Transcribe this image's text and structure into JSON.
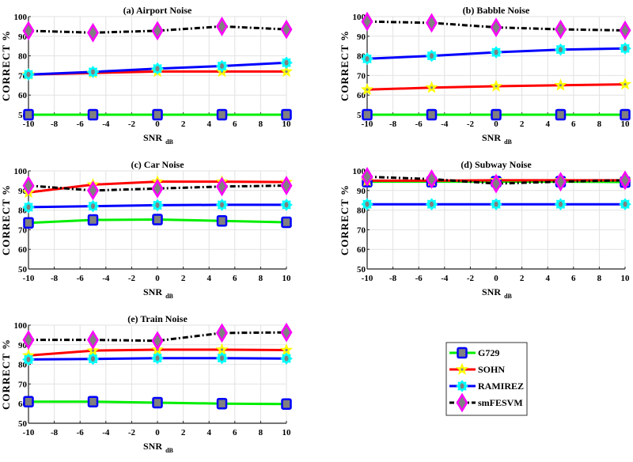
{
  "chart_data": [
    {
      "type": "line",
      "title": "(a) Airport Noise",
      "xlabel": "SNR",
      "xlabel_sub": "dB",
      "ylabel": "CORRECT %",
      "x": [
        -10,
        -5,
        0,
        5,
        10
      ],
      "xlim": [
        -10,
        10
      ],
      "ylim": [
        50,
        100
      ],
      "xticks": [
        -10,
        -8,
        -6,
        -4,
        -2,
        0,
        2,
        4,
        6,
        8,
        10
      ],
      "yticks": [
        50,
        60,
        70,
        80,
        90,
        100
      ],
      "grid": true,
      "series": [
        {
          "name": "G729",
          "values": [
            50,
            50,
            50,
            50,
            50
          ]
        },
        {
          "name": "SOHN",
          "values": [
            70.5,
            71.3,
            72,
            72,
            72
          ]
        },
        {
          "name": "RAMIREZ",
          "values": [
            70.5,
            71.8,
            73.5,
            74.8,
            76.5
          ]
        },
        {
          "name": "smFESVM",
          "values": [
            92.8,
            91.8,
            92.8,
            95,
            93.5
          ]
        }
      ]
    },
    {
      "type": "line",
      "title": "(b) Babble Noise",
      "xlabel": "SNR",
      "xlabel_sub": "dB",
      "ylabel": "CORRECT %",
      "x": [
        -10,
        -5,
        0,
        5,
        10
      ],
      "xlim": [
        -10,
        10
      ],
      "ylim": [
        50,
        100
      ],
      "xticks": [
        -10,
        -8,
        -6,
        -4,
        -2,
        0,
        2,
        4,
        6,
        8,
        10
      ],
      "yticks": [
        50,
        60,
        70,
        80,
        90,
        100
      ],
      "grid": true,
      "series": [
        {
          "name": "G729",
          "values": [
            50,
            50,
            50,
            50,
            50
          ]
        },
        {
          "name": "SOHN",
          "values": [
            62.8,
            63.8,
            64.5,
            65,
            65.5
          ]
        },
        {
          "name": "RAMIREZ",
          "values": [
            78.5,
            80,
            81.8,
            83.2,
            83.8
          ]
        },
        {
          "name": "smFESVM",
          "values": [
            97.5,
            96.8,
            94.5,
            93.5,
            93
          ]
        }
      ]
    },
    {
      "type": "line",
      "title": "(c) Car Noise",
      "xlabel": "SNR",
      "xlabel_sub": "dB",
      "ylabel": "CORRECT %",
      "x": [
        -10,
        -5,
        0,
        5,
        10
      ],
      "xlim": [
        -10,
        10
      ],
      "ylim": [
        50,
        100
      ],
      "xticks": [
        -10,
        -8,
        -6,
        -4,
        -2,
        0,
        2,
        4,
        6,
        8,
        10
      ],
      "yticks": [
        50,
        60,
        70,
        80,
        90,
        100
      ],
      "grid": true,
      "series": [
        {
          "name": "G729",
          "values": [
            73.5,
            75,
            75.2,
            74.5,
            73.8
          ]
        },
        {
          "name": "SOHN",
          "values": [
            89,
            93,
            94.5,
            94.5,
            94.3
          ]
        },
        {
          "name": "RAMIREZ",
          "values": [
            81.5,
            82,
            82.5,
            82.7,
            82.7
          ]
        },
        {
          "name": "smFESVM",
          "values": [
            92.5,
            90,
            91,
            92,
            92.5
          ]
        }
      ]
    },
    {
      "type": "line",
      "title": "(d) Subway Noise",
      "xlabel": "SNR",
      "xlabel_sub": "dB",
      "ylabel": "CORRECT %",
      "x": [
        -10,
        -5,
        0,
        5,
        10
      ],
      "xlim": [
        -10,
        10
      ],
      "ylim": [
        50,
        100
      ],
      "xticks": [
        -10,
        -8,
        -6,
        -4,
        -2,
        0,
        2,
        4,
        6,
        8,
        10
      ],
      "yticks": [
        50,
        60,
        70,
        80,
        90,
        100
      ],
      "grid": true,
      "series": [
        {
          "name": "G729",
          "values": [
            94.5,
            94.5,
            94.5,
            94.5,
            94.3
          ]
        },
        {
          "name": "SOHN",
          "values": [
            95,
            95,
            95.2,
            95.2,
            95.2
          ]
        },
        {
          "name": "RAMIREZ",
          "values": [
            83,
            83,
            83,
            83,
            83
          ]
        },
        {
          "name": "smFESVM",
          "values": [
            97,
            95.8,
            93.5,
            94.5,
            95.2
          ]
        }
      ]
    },
    {
      "type": "line",
      "title": "(e) Train Noise",
      "xlabel": "SNR",
      "xlabel_sub": "dB",
      "ylabel": "CORRECT %",
      "x": [
        -10,
        -5,
        0,
        5,
        10
      ],
      "xlim": [
        -10,
        10
      ],
      "ylim": [
        50,
        100
      ],
      "xticks": [
        -10,
        -8,
        -6,
        -4,
        -2,
        0,
        2,
        4,
        6,
        8,
        10
      ],
      "yticks": [
        50,
        60,
        70,
        80,
        90,
        100
      ],
      "grid": true,
      "series": [
        {
          "name": "G729",
          "values": [
            61,
            61,
            60.5,
            60,
            59.8
          ]
        },
        {
          "name": "SOHN",
          "values": [
            84.5,
            87,
            87.5,
            87.5,
            87.3
          ]
        },
        {
          "name": "RAMIREZ",
          "values": [
            82.5,
            82.8,
            83.2,
            83.2,
            83
          ]
        },
        {
          "name": "smFESVM",
          "values": [
            92.5,
            92.5,
            92,
            96,
            96.3
          ]
        }
      ]
    }
  ],
  "legend": {
    "placement": "bottom-right",
    "entries": [
      {
        "name": "G729",
        "line_color": "#00ee00",
        "marker": "square",
        "marker_edge": "#0000ff",
        "marker_face": "#808080",
        "dash": "solid"
      },
      {
        "name": "SOHN",
        "line_color": "#ff0000",
        "marker": "star",
        "marker_edge": "#ffff00",
        "marker_face": "#808080",
        "dash": "solid"
      },
      {
        "name": "RAMIREZ",
        "line_color": "#0000ff",
        "marker": "flower",
        "marker_edge": "#00ffff",
        "marker_face": "#808080",
        "dash": "solid"
      },
      {
        "name": "smFESVM",
        "line_color": "#000000",
        "marker": "diamond",
        "marker_edge": "#ff00ff",
        "marker_face": "#808080",
        "dash": "dashdot"
      }
    ]
  }
}
